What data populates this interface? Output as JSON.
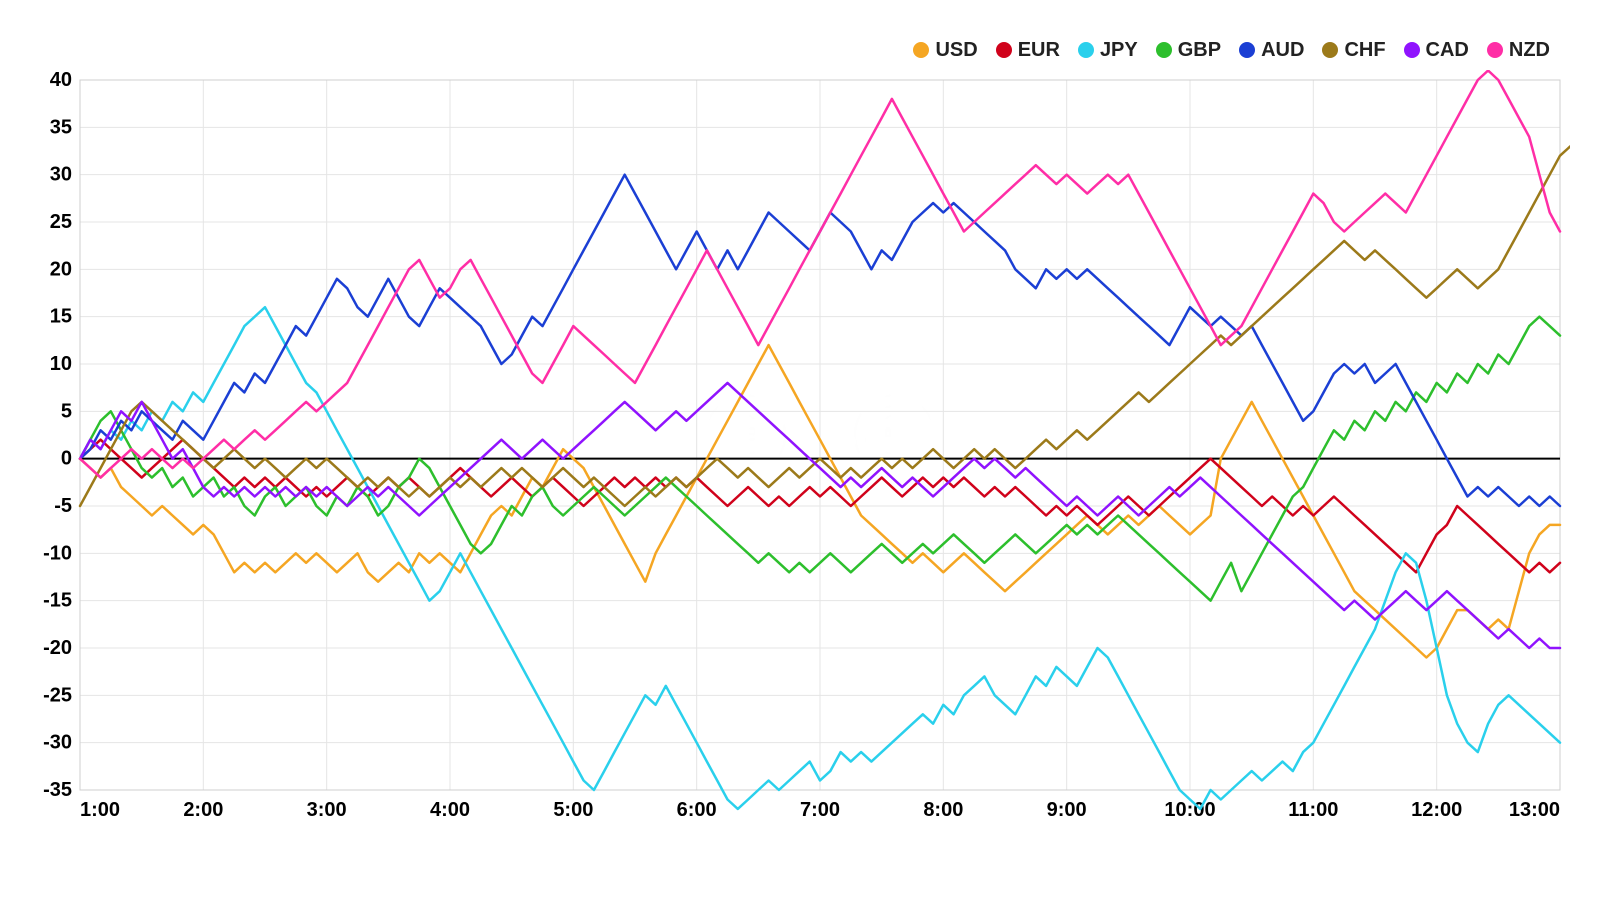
{
  "chart": {
    "type": "line",
    "background_color": "#ffffff",
    "border_color": "#cfcfcf",
    "grid_color": "#e5e5e5",
    "axis_color": "#000000",
    "zero_line_color": "#000000",
    "line_width": 2.5,
    "label_fontsize": 20,
    "bold_first_last_x": true,
    "x_axis": {
      "labels": [
        "1:00",
        "2:00",
        "3:00",
        "4:00",
        "5:00",
        "6:00",
        "7:00",
        "8:00",
        "9:00",
        "10:00",
        "11:00",
        "12:00",
        "13:00"
      ],
      "min_index": 0,
      "max_index": 144
    },
    "y_axis": {
      "min": -35,
      "max": 40,
      "tick_step": 5,
      "ticks": [
        -35,
        -30,
        -25,
        -20,
        -15,
        -10,
        -5,
        0,
        5,
        10,
        15,
        20,
        25,
        30,
        35,
        40
      ]
    },
    "legend": {
      "position": "top-right",
      "marker_shape": "circle",
      "marker_size": 16
    },
    "watermark": {
      "text_top": "AB",
      "label": "ARABIAN BUSINESS ACADEMY",
      "opacity": 0.06,
      "grid_rows": 3,
      "grid_cols": 10,
      "center_scale": 3.4
    },
    "series": [
      {
        "name": "USD",
        "color": "#f5a623",
        "data": [
          0,
          -1,
          -2,
          -1,
          -3,
          -4,
          -5,
          -6,
          -5,
          -6,
          -7,
          -8,
          -7,
          -8,
          -10,
          -12,
          -11,
          -12,
          -11,
          -12,
          -11,
          -10,
          -11,
          -10,
          -11,
          -12,
          -11,
          -10,
          -12,
          -13,
          -12,
          -11,
          -12,
          -10,
          -11,
          -10,
          -11,
          -12,
          -10,
          -8,
          -6,
          -5,
          -6,
          -4,
          -2,
          -3,
          -1,
          1,
          0,
          -1,
          -3,
          -5,
          -7,
          -9,
          -11,
          -13,
          -10,
          -8,
          -6,
          -4,
          -2,
          0,
          2,
          4,
          6,
          8,
          10,
          12,
          10,
          8,
          6,
          4,
          2,
          0,
          -2,
          -4,
          -6,
          -7,
          -8,
          -9,
          -10,
          -11,
          -10,
          -11,
          -12,
          -11,
          -10,
          -11,
          -12,
          -13,
          -14,
          -13,
          -12,
          -11,
          -10,
          -9,
          -8,
          -7,
          -6,
          -7,
          -8,
          -7,
          -6,
          -7,
          -6,
          -5,
          -6,
          -7,
          -8,
          -7,
          -6,
          0,
          2,
          4,
          6,
          4,
          2,
          0,
          -2,
          -4,
          -6,
          -8,
          -10,
          -12,
          -14,
          -15,
          -16,
          -17,
          -18,
          -19,
          -20,
          -21,
          -20,
          -18,
          -16,
          -16,
          -17,
          -18,
          -17,
          -18,
          -14,
          -10,
          -8,
          -7,
          -7
        ]
      },
      {
        "name": "EUR",
        "color": "#d0021b",
        "data": [
          0,
          1,
          2,
          1,
          0,
          -1,
          -2,
          -1,
          0,
          1,
          2,
          1,
          0,
          -1,
          -2,
          -3,
          -2,
          -3,
          -2,
          -3,
          -2,
          -3,
          -4,
          -3,
          -4,
          -3,
          -2,
          -3,
          -4,
          -3,
          -2,
          -3,
          -2,
          -3,
          -4,
          -3,
          -2,
          -1,
          -2,
          -3,
          -4,
          -3,
          -2,
          -3,
          -4,
          -3,
          -2,
          -3,
          -4,
          -5,
          -4,
          -3,
          -2,
          -3,
          -2,
          -3,
          -2,
          -3,
          -2,
          -3,
          -2,
          -3,
          -4,
          -5,
          -4,
          -3,
          -4,
          -5,
          -4,
          -5,
          -4,
          -3,
          -4,
          -3,
          -4,
          -5,
          -4,
          -3,
          -2,
          -3,
          -4,
          -3,
          -2,
          -3,
          -2,
          -3,
          -2,
          -3,
          -4,
          -3,
          -4,
          -3,
          -4,
          -5,
          -6,
          -5,
          -6,
          -5,
          -6,
          -7,
          -6,
          -5,
          -4,
          -5,
          -6,
          -5,
          -4,
          -3,
          -2,
          -1,
          0,
          -1,
          -2,
          -3,
          -4,
          -5,
          -4,
          -5,
          -6,
          -5,
          -6,
          -5,
          -4,
          -5,
          -6,
          -7,
          -8,
          -9,
          -10,
          -11,
          -12,
          -10,
          -8,
          -7,
          -5,
          -6,
          -7,
          -8,
          -9,
          -10,
          -11,
          -12,
          -11,
          -12,
          -11
        ]
      },
      {
        "name": "JPY",
        "color": "#2ad0ec",
        "data": [
          0,
          2,
          1,
          3,
          2,
          4,
          3,
          5,
          4,
          6,
          5,
          7,
          6,
          8,
          10,
          12,
          14,
          15,
          16,
          14,
          12,
          10,
          8,
          7,
          5,
          3,
          1,
          -1,
          -3,
          -5,
          -7,
          -9,
          -11,
          -13,
          -15,
          -14,
          -12,
          -10,
          -12,
          -14,
          -16,
          -18,
          -20,
          -22,
          -24,
          -26,
          -28,
          -30,
          -32,
          -34,
          -35,
          -33,
          -31,
          -29,
          -27,
          -25,
          -26,
          -24,
          -26,
          -28,
          -30,
          -32,
          -34,
          -36,
          -37,
          -36,
          -35,
          -34,
          -35,
          -34,
          -33,
          -32,
          -34,
          -33,
          -31,
          -32,
          -31,
          -32,
          -31,
          -30,
          -29,
          -28,
          -27,
          -28,
          -26,
          -27,
          -25,
          -24,
          -23,
          -25,
          -26,
          -27,
          -25,
          -23,
          -24,
          -22,
          -23,
          -24,
          -22,
          -20,
          -21,
          -23,
          -25,
          -27,
          -29,
          -31,
          -33,
          -35,
          -36,
          -37,
          -35,
          -36,
          -35,
          -34,
          -33,
          -34,
          -33,
          -32,
          -33,
          -31,
          -30,
          -28,
          -26,
          -24,
          -22,
          -20,
          -18,
          -15,
          -12,
          -10,
          -11,
          -15,
          -20,
          -25,
          -28,
          -30,
          -31,
          -28,
          -26,
          -25,
          -26,
          -27,
          -28,
          -29,
          -30
        ]
      },
      {
        "name": "GBP",
        "color": "#2dbf2d",
        "data": [
          0,
          2,
          4,
          5,
          3,
          1,
          -1,
          -2,
          -1,
          -3,
          -2,
          -4,
          -3,
          -2,
          -4,
          -3,
          -5,
          -6,
          -4,
          -3,
          -5,
          -4,
          -3,
          -5,
          -6,
          -4,
          -5,
          -3,
          -4,
          -6,
          -5,
          -3,
          -2,
          0,
          -1,
          -3,
          -5,
          -7,
          -9,
          -10,
          -9,
          -7,
          -5,
          -6,
          -4,
          -3,
          -5,
          -6,
          -5,
          -4,
          -3,
          -4,
          -5,
          -6,
          -5,
          -4,
          -3,
          -2,
          -3,
          -4,
          -5,
          -6,
          -7,
          -8,
          -9,
          -10,
          -11,
          -10,
          -11,
          -12,
          -11,
          -12,
          -11,
          -10,
          -11,
          -12,
          -11,
          -10,
          -9,
          -10,
          -11,
          -10,
          -9,
          -10,
          -9,
          -8,
          -9,
          -10,
          -11,
          -10,
          -9,
          -8,
          -9,
          -10,
          -9,
          -8,
          -7,
          -8,
          -7,
          -8,
          -7,
          -6,
          -7,
          -8,
          -9,
          -10,
          -11,
          -12,
          -13,
          -14,
          -15,
          -13,
          -11,
          -14,
          -12,
          -10,
          -8,
          -6,
          -4,
          -3,
          -1,
          1,
          3,
          2,
          4,
          3,
          5,
          4,
          6,
          5,
          7,
          6,
          8,
          7,
          9,
          8,
          10,
          9,
          11,
          10,
          12,
          14,
          15,
          14,
          13
        ]
      },
      {
        "name": "AUD",
        "color": "#1b3fd4",
        "data": [
          0,
          1,
          3,
          2,
          4,
          3,
          5,
          4,
          3,
          2,
          4,
          3,
          2,
          4,
          6,
          8,
          7,
          9,
          8,
          10,
          12,
          14,
          13,
          15,
          17,
          19,
          18,
          16,
          15,
          17,
          19,
          17,
          15,
          14,
          16,
          18,
          17,
          16,
          15,
          14,
          12,
          10,
          11,
          13,
          15,
          14,
          16,
          18,
          20,
          22,
          24,
          26,
          28,
          30,
          28,
          26,
          24,
          22,
          20,
          22,
          24,
          22,
          20,
          22,
          20,
          22,
          24,
          26,
          25,
          24,
          23,
          22,
          24,
          26,
          25,
          24,
          22,
          20,
          22,
          21,
          23,
          25,
          26,
          27,
          26,
          27,
          26,
          25,
          24,
          23,
          22,
          20,
          19,
          18,
          20,
          19,
          20,
          19,
          20,
          19,
          18,
          17,
          16,
          15,
          14,
          13,
          12,
          14,
          16,
          15,
          14,
          15,
          14,
          13,
          14,
          12,
          10,
          8,
          6,
          4,
          5,
          7,
          9,
          10,
          9,
          10,
          8,
          9,
          10,
          8,
          6,
          4,
          2,
          0,
          -2,
          -4,
          -3,
          -4,
          -3,
          -4,
          -5,
          -4,
          -5,
          -4,
          -5
        ]
      },
      {
        "name": "CHF",
        "color": "#9c7a1a",
        "data": [
          -5,
          -3,
          -1,
          1,
          3,
          5,
          6,
          5,
          4,
          3,
          2,
          1,
          0,
          -1,
          0,
          1,
          0,
          -1,
          0,
          -1,
          -2,
          -1,
          0,
          -1,
          0,
          -1,
          -2,
          -3,
          -2,
          -3,
          -2,
          -3,
          -4,
          -3,
          -4,
          -3,
          -2,
          -3,
          -2,
          -3,
          -2,
          -1,
          -2,
          -1,
          -2,
          -3,
          -2,
          -1,
          -2,
          -3,
          -2,
          -3,
          -4,
          -5,
          -4,
          -3,
          -4,
          -3,
          -2,
          -3,
          -2,
          -1,
          0,
          -1,
          -2,
          -1,
          -2,
          -3,
          -2,
          -1,
          -2,
          -1,
          0,
          -1,
          -2,
          -1,
          -2,
          -1,
          0,
          -1,
          0,
          -1,
          0,
          1,
          0,
          -1,
          0,
          1,
          0,
          1,
          0,
          -1,
          0,
          1,
          2,
          1,
          2,
          3,
          2,
          3,
          4,
          5,
          6,
          7,
          6,
          7,
          8,
          9,
          10,
          11,
          12,
          13,
          12,
          13,
          14,
          15,
          16,
          17,
          18,
          19,
          20,
          21,
          22,
          23,
          22,
          21,
          22,
          21,
          20,
          19,
          18,
          17,
          18,
          19,
          20,
          19,
          18,
          19,
          20,
          22,
          24,
          26,
          28,
          30,
          32,
          33
        ]
      },
      {
        "name": "CAD",
        "color": "#9013fe",
        "data": [
          0,
          2,
          1,
          3,
          5,
          4,
          6,
          4,
          2,
          0,
          1,
          -1,
          -3,
          -4,
          -3,
          -4,
          -3,
          -4,
          -3,
          -4,
          -3,
          -4,
          -3,
          -4,
          -3,
          -4,
          -5,
          -4,
          -3,
          -4,
          -3,
          -4,
          -5,
          -6,
          -5,
          -4,
          -3,
          -2,
          -1,
          0,
          1,
          2,
          1,
          0,
          1,
          2,
          1,
          0,
          1,
          2,
          3,
          4,
          5,
          6,
          5,
          4,
          3,
          4,
          5,
          4,
          5,
          6,
          7,
          8,
          7,
          6,
          5,
          4,
          3,
          2,
          1,
          0,
          -1,
          -2,
          -3,
          -2,
          -3,
          -2,
          -1,
          -2,
          -3,
          -2,
          -3,
          -4,
          -3,
          -2,
          -1,
          0,
          -1,
          0,
          -1,
          -2,
          -1,
          -2,
          -3,
          -4,
          -5,
          -4,
          -5,
          -6,
          -5,
          -4,
          -5,
          -6,
          -5,
          -4,
          -3,
          -4,
          -3,
          -2,
          -3,
          -4,
          -5,
          -6,
          -7,
          -8,
          -9,
          -10,
          -11,
          -12,
          -13,
          -14,
          -15,
          -16,
          -15,
          -16,
          -17,
          -16,
          -15,
          -14,
          -15,
          -16,
          -15,
          -14,
          -15,
          -16,
          -17,
          -18,
          -19,
          -18,
          -19,
          -20,
          -19,
          -20,
          -20
        ]
      },
      {
        "name": "NZD",
        "color": "#ff2ea6",
        "data": [
          0,
          -1,
          -2,
          -1,
          0,
          1,
          0,
          1,
          0,
          -1,
          0,
          -1,
          0,
          1,
          2,
          1,
          2,
          3,
          2,
          3,
          4,
          5,
          6,
          5,
          6,
          7,
          8,
          10,
          12,
          14,
          16,
          18,
          20,
          21,
          19,
          17,
          18,
          20,
          21,
          19,
          17,
          15,
          13,
          11,
          9,
          8,
          10,
          12,
          14,
          13,
          12,
          11,
          10,
          9,
          8,
          10,
          12,
          14,
          16,
          18,
          20,
          22,
          20,
          18,
          16,
          14,
          12,
          14,
          16,
          18,
          20,
          22,
          24,
          26,
          28,
          30,
          32,
          34,
          36,
          38,
          36,
          34,
          32,
          30,
          28,
          26,
          24,
          25,
          26,
          27,
          28,
          29,
          30,
          31,
          30,
          29,
          30,
          29,
          28,
          29,
          30,
          29,
          30,
          28,
          26,
          24,
          22,
          20,
          18,
          16,
          14,
          12,
          13,
          14,
          16,
          18,
          20,
          22,
          24,
          26,
          28,
          27,
          25,
          24,
          25,
          26,
          27,
          28,
          27,
          26,
          28,
          30,
          32,
          34,
          36,
          38,
          40,
          41,
          40,
          38,
          36,
          34,
          30,
          26,
          24
        ]
      }
    ]
  }
}
